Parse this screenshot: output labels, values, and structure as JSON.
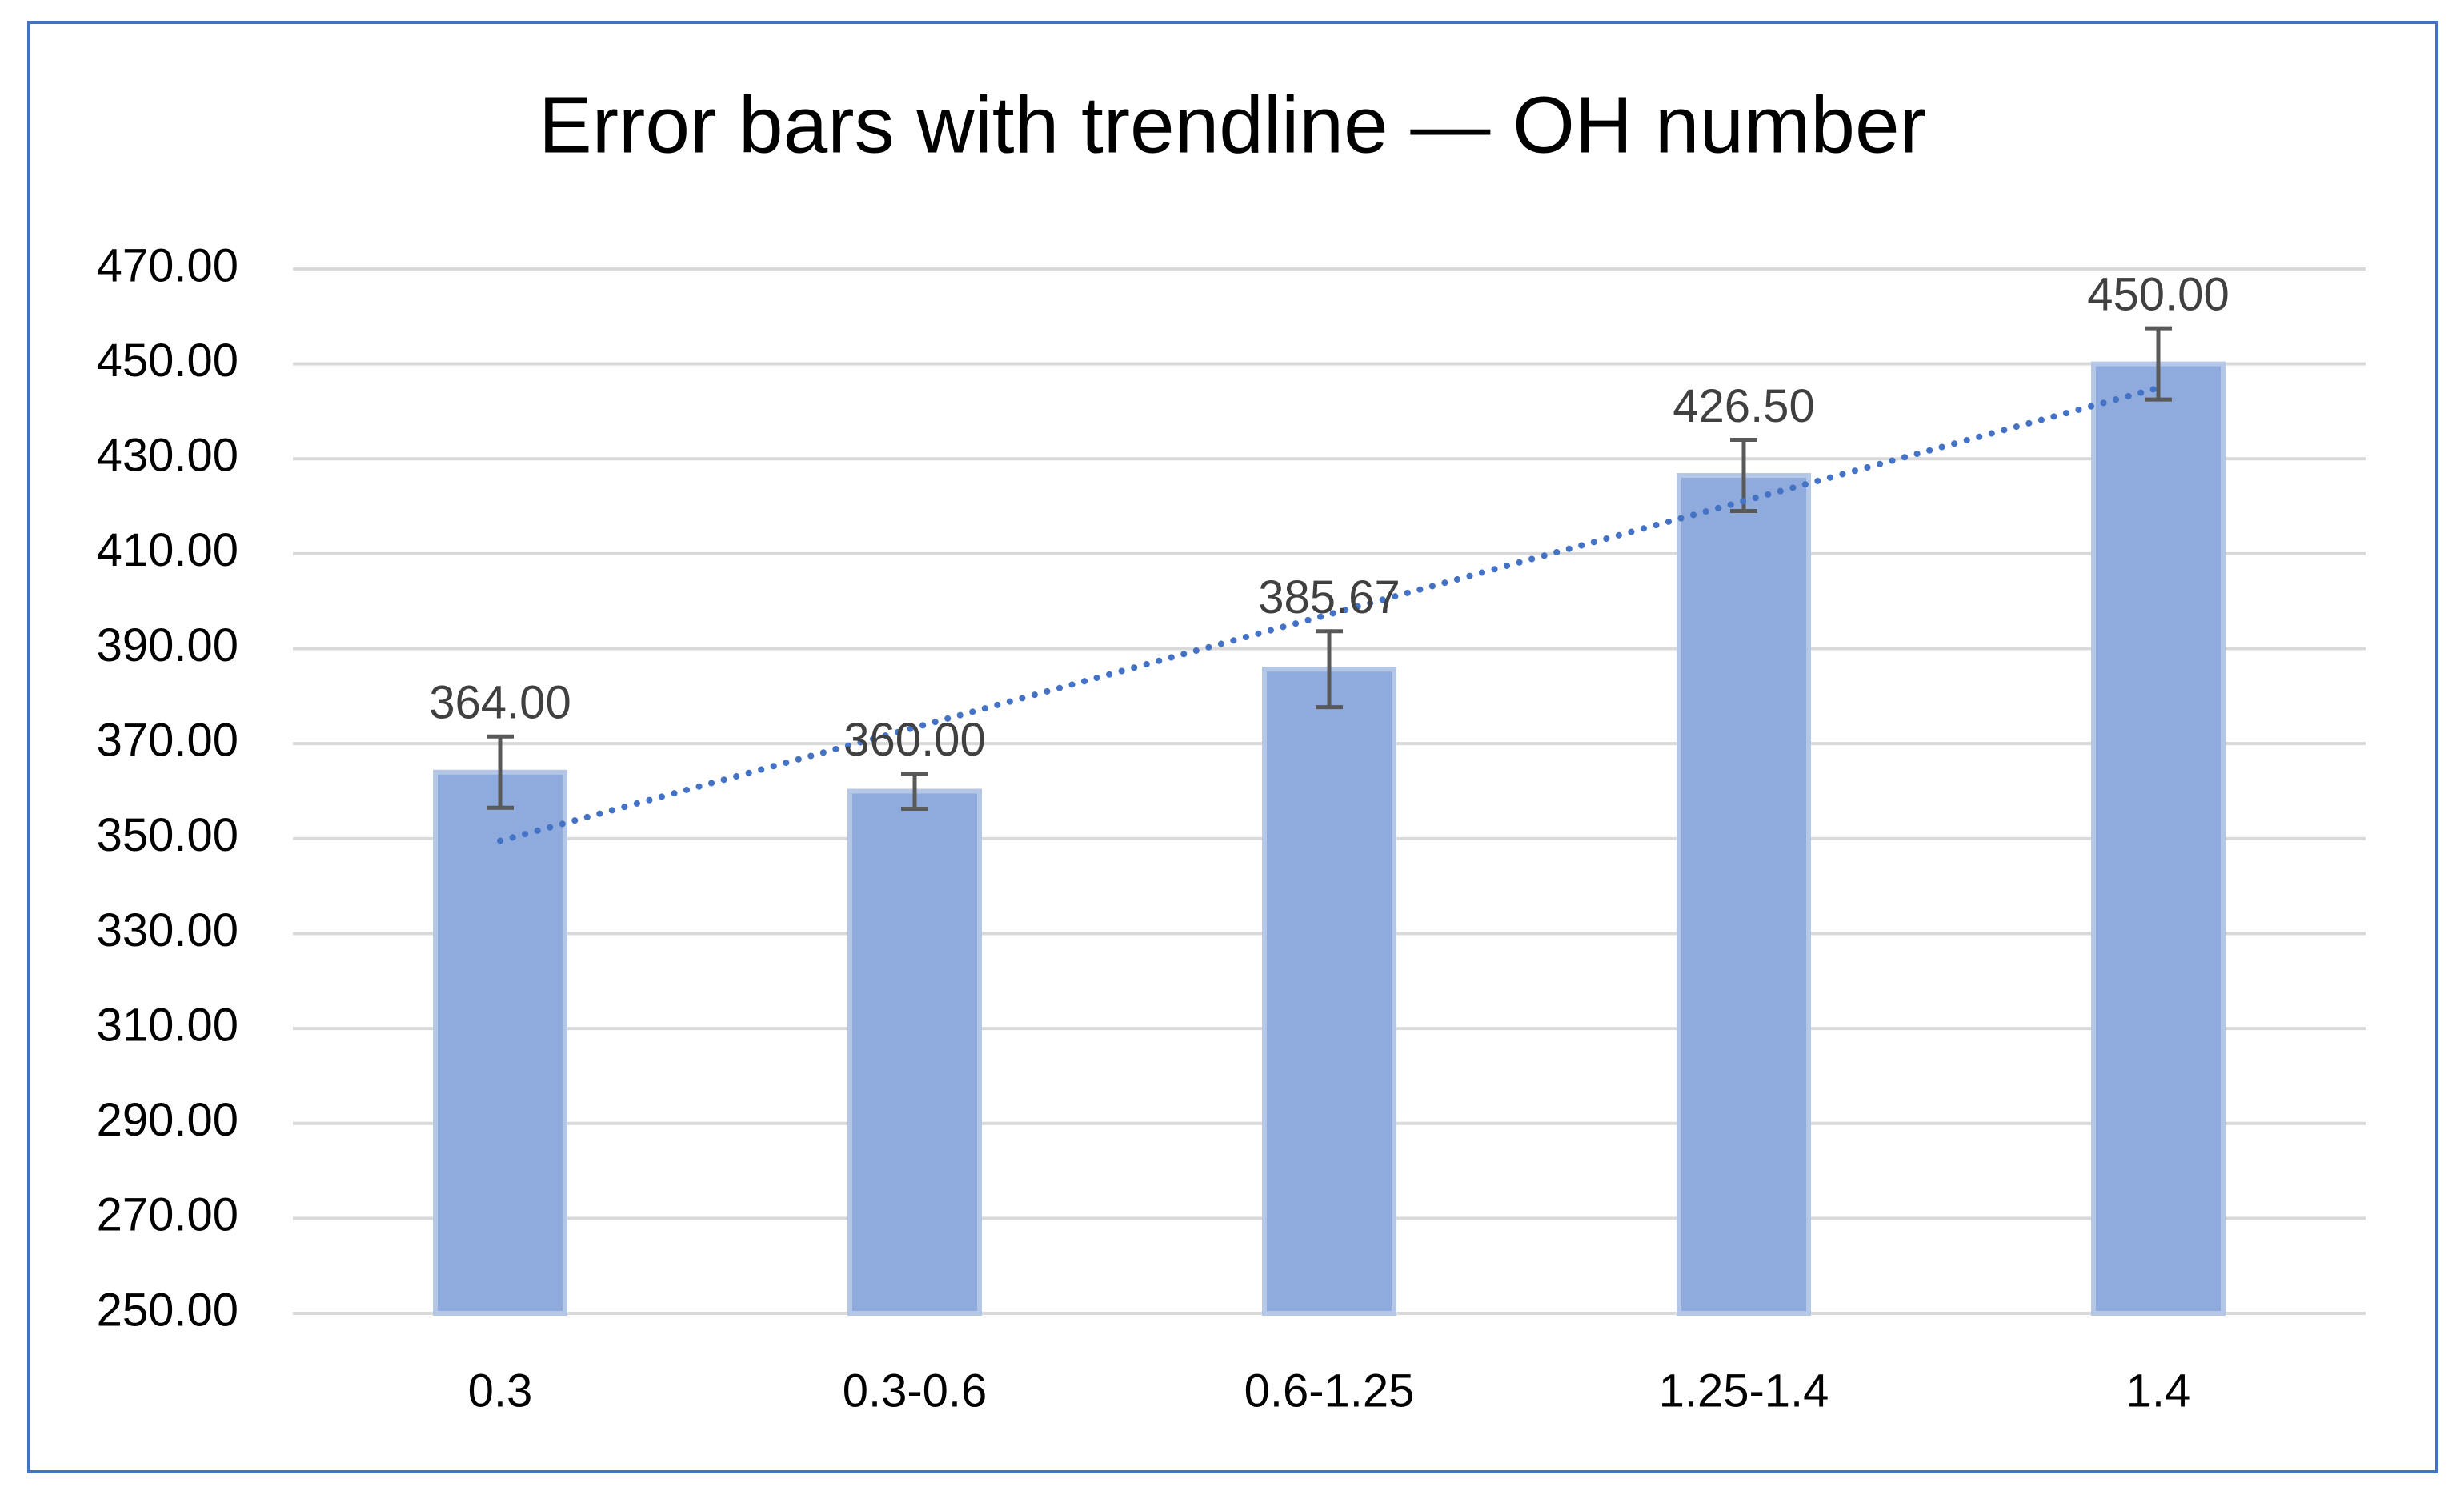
{
  "chart_data": {
    "type": "bar",
    "title": "Error bars with trendline — OH number",
    "categories": [
      "0.3",
      "0.3-0.6",
      "0.6-1.25",
      "1.25-1.4",
      "1.4"
    ],
    "values": [
      364,
      360,
      385.67,
      426.5,
      450
    ],
    "value_labels": [
      "364.00",
      "360.00",
      "385.67",
      "426.50",
      "450.00"
    ],
    "errors": [
      7.5,
      3.7,
      8,
      7.5,
      7.5
    ],
    "color": "#8faadc",
    "edge_color": "#b4c7e7",
    "error_color": "#595959",
    "trendline": "linear",
    "trendline_color": "#4472c4",
    "ylim": [
      250,
      470
    ],
    "yticks": [
      {
        "value": 250,
        "label": "250.00"
      },
      {
        "value": 270,
        "label": "270.00"
      },
      {
        "value": 290,
        "label": "290.00"
      },
      {
        "value": 310,
        "label": "310.00"
      },
      {
        "value": 330,
        "label": "330.00"
      },
      {
        "value": 350,
        "label": "350.00"
      },
      {
        "value": 370,
        "label": "370.00"
      },
      {
        "value": 390,
        "label": "390.00"
      },
      {
        "value": 410,
        "label": "410.00"
      },
      {
        "value": 430,
        "label": "430.00"
      },
      {
        "value": 450,
        "label": "450.00"
      },
      {
        "value": 470,
        "label": "470.00"
      }
    ],
    "grid": true
  }
}
